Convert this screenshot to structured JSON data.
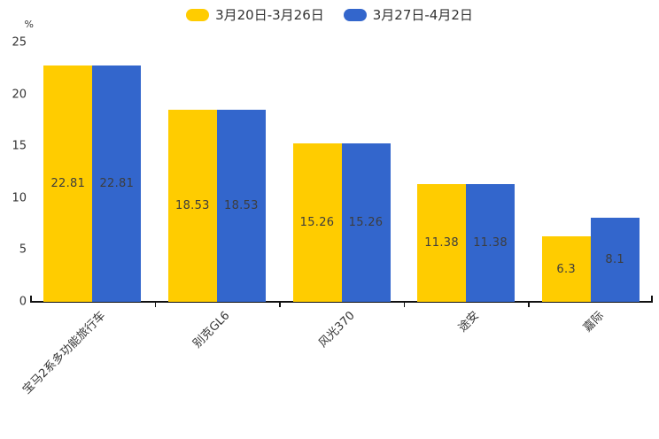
{
  "chart_data": {
    "type": "bar",
    "title": "",
    "xlabel": "",
    "ylabel": "%",
    "ylim": [
      0,
      25
    ],
    "yticks": [
      0,
      5,
      10,
      15,
      20,
      25
    ],
    "grid": false,
    "legend_position": "top",
    "categories": [
      "宝马2系多功能旅行车",
      "别克GL6",
      "风光370",
      "途安",
      "嘉际"
    ],
    "series": [
      {
        "name": "3月20日-3月26日",
        "color": "#FFCC00",
        "values": [
          22.81,
          18.53,
          15.26,
          11.38,
          6.3
        ],
        "labels": [
          "22.81",
          "18.53",
          "15.26",
          "11.38",
          "6.3"
        ]
      },
      {
        "name": "3月27日-4月2日",
        "color": "#3366CC",
        "values": [
          22.81,
          18.53,
          15.26,
          11.38,
          8.1
        ],
        "labels": [
          "22.81",
          "18.53",
          "15.26",
          "11.38",
          "8.1"
        ]
      }
    ]
  },
  "colors": {
    "axis": "#111111",
    "tick_text": "#333333",
    "value_label_text": "#3d3d3d",
    "background": "#ffffff"
  }
}
